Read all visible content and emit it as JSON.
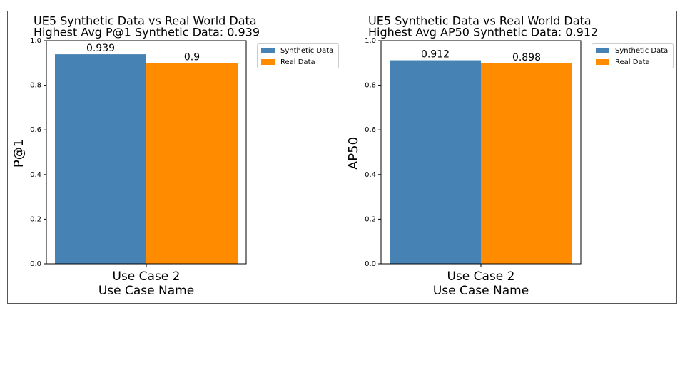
{
  "chart_data": [
    {
      "type": "bar",
      "title": "UE5 Synthetic Data vs Real World Data",
      "subtitle": "Highest Avg P@1 Synthetic Data: 0.939",
      "ylabel": "P@1",
      "categories": [
        "Use Case 2\nUse Case Name"
      ],
      "series": [
        {
          "name": "Synthetic Data",
          "color": "#4682b4",
          "values": [
            0.939
          ]
        },
        {
          "name": "Real Data",
          "color": "#ff8c00",
          "values": [
            0.9
          ]
        }
      ],
      "ylim": [
        0,
        1
      ],
      "yticks": [
        {
          "value": 0,
          "label": "0.0"
        },
        0.2,
        0.4,
        0.6,
        0.8,
        {
          "value": 1,
          "label": "1.0"
        }
      ],
      "legend": "upper right"
    },
    {
      "type": "bar",
      "title": "UE5 Synthetic Data vs Real World Data",
      "subtitle": "Highest Avg AP50 Synthetic Data: 0.912",
      "ylabel": "AP50",
      "categories": [
        "Use Case 2\nUse Case Name"
      ],
      "series": [
        {
          "name": "Synthetic Data",
          "color": "#4682b4",
          "values": [
            0.912
          ]
        },
        {
          "name": "Real Data",
          "color": "#ff8c00",
          "values": [
            0.898
          ]
        }
      ],
      "ylim": [
        0,
        1
      ],
      "yticks": [
        {
          "value": 0,
          "label": "0.0"
        },
        0.2,
        0.4,
        0.6,
        0.8,
        {
          "value": 1,
          "label": "1.0"
        }
      ],
      "legend": "upper right"
    }
  ]
}
